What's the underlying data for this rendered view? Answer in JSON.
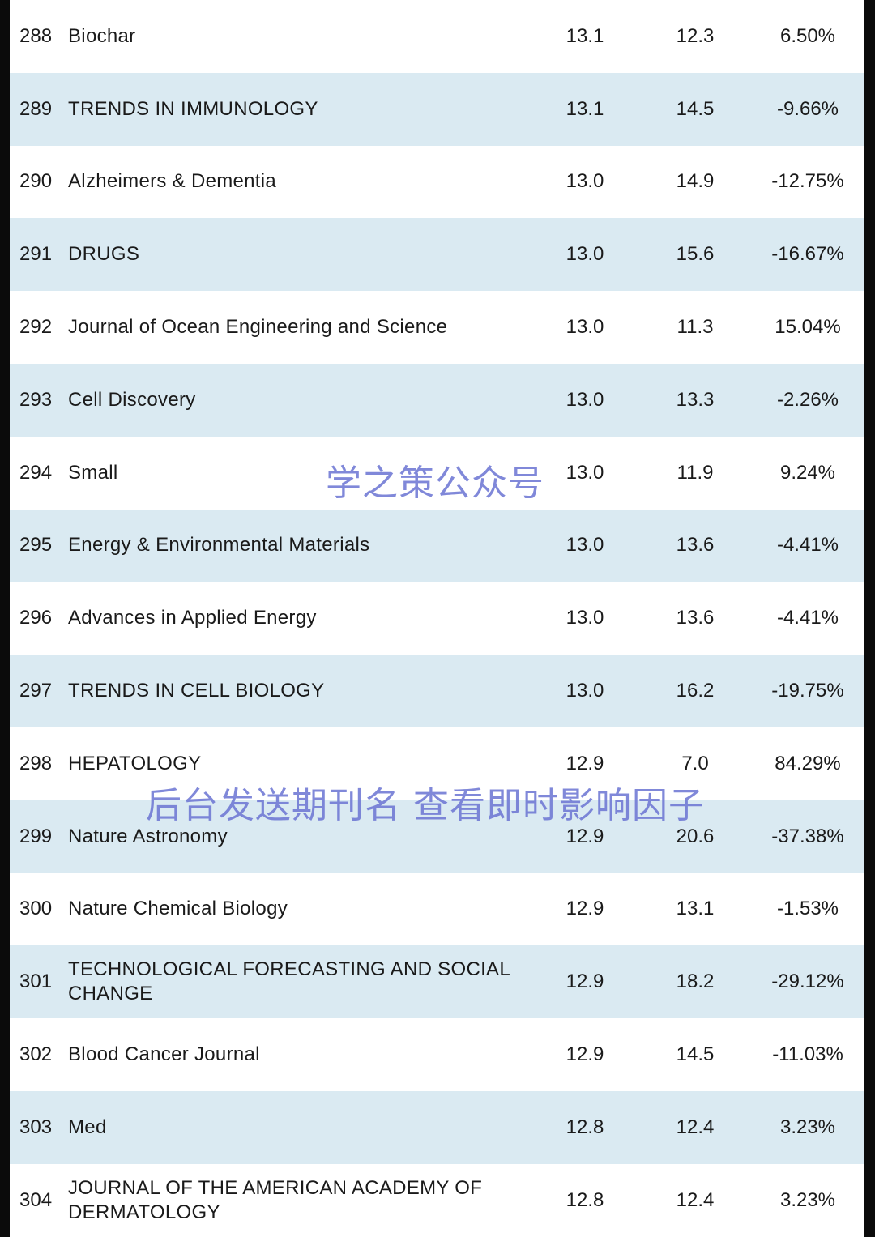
{
  "rows": [
    {
      "rank": "288",
      "name": "Biochar",
      "v1": "13.1",
      "v2": "12.3",
      "change": "6.50%"
    },
    {
      "rank": "289",
      "name": "TRENDS IN IMMUNOLOGY",
      "v1": "13.1",
      "v2": "14.5",
      "change": "-9.66%"
    },
    {
      "rank": "290",
      "name": "Alzheimers & Dementia",
      "v1": "13.0",
      "v2": "14.9",
      "change": "-12.75%"
    },
    {
      "rank": "291",
      "name": "DRUGS",
      "v1": "13.0",
      "v2": "15.6",
      "change": "-16.67%"
    },
    {
      "rank": "292",
      "name": "Journal of Ocean Engineering and Science",
      "v1": "13.0",
      "v2": "11.3",
      "change": "15.04%"
    },
    {
      "rank": "293",
      "name": "Cell Discovery",
      "v1": "13.0",
      "v2": "13.3",
      "change": "-2.26%"
    },
    {
      "rank": "294",
      "name": "Small",
      "v1": "13.0",
      "v2": "11.9",
      "change": "9.24%"
    },
    {
      "rank": "295",
      "name": "Energy & Environmental Materials",
      "v1": "13.0",
      "v2": "13.6",
      "change": "-4.41%"
    },
    {
      "rank": "296",
      "name": "Advances in Applied Energy",
      "v1": "13.0",
      "v2": "13.6",
      "change": "-4.41%"
    },
    {
      "rank": "297",
      "name": "TRENDS IN CELL BIOLOGY",
      "v1": "13.0",
      "v2": "16.2",
      "change": "-19.75%"
    },
    {
      "rank": "298",
      "name": "HEPATOLOGY",
      "v1": "12.9",
      "v2": "7.0",
      "change": "84.29%"
    },
    {
      "rank": "299",
      "name": "Nature Astronomy",
      "v1": "12.9",
      "v2": "20.6",
      "change": "-37.38%"
    },
    {
      "rank": "300",
      "name": "Nature Chemical Biology",
      "v1": "12.9",
      "v2": "13.1",
      "change": "-1.53%"
    },
    {
      "rank": "301",
      "name": "TECHNOLOGICAL FORECASTING AND SOCIAL CHANGE",
      "v1": "12.9",
      "v2": "18.2",
      "change": "-29.12%"
    },
    {
      "rank": "302",
      "name": "Blood Cancer Journal",
      "v1": "12.9",
      "v2": "14.5",
      "change": "-11.03%"
    },
    {
      "rank": "303",
      "name": "Med",
      "v1": "12.8",
      "v2": "12.4",
      "change": "3.23%"
    },
    {
      "rank": "304",
      "name": "JOURNAL OF THE AMERICAN ACADEMY OF DERMATOLOGY",
      "v1": "12.8",
      "v2": "12.4",
      "change": "3.23%"
    }
  ],
  "watermark": {
    "line1": "学之策公众号",
    "line2": "后台发送期刊名 查看即时影响因子",
    "color": "#6f78d4"
  },
  "colors": {
    "row_alt": "#daeaf2",
    "border": "#0b0b0b"
  }
}
